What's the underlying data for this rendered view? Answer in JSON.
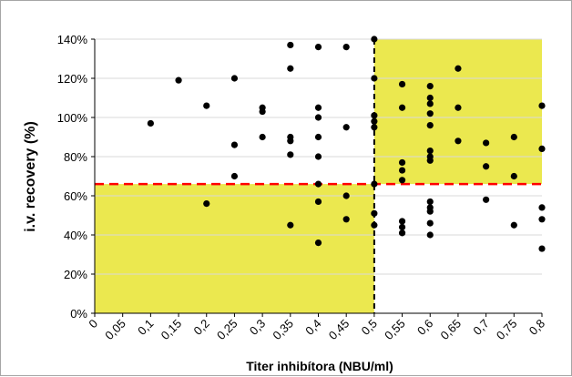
{
  "chart_data": {
    "type": "scatter",
    "xlabel": "Titer inhibítora (NBU/ml)",
    "ylabel": "i.v. recovery (%)",
    "xlim": [
      0,
      0.8
    ],
    "ylim": [
      0,
      140
    ],
    "x_ticks": [
      "0",
      "0,05",
      "0,1",
      "0,15",
      "0,2",
      "0,25",
      "0,3",
      "0,35",
      "0,4",
      "0,45",
      "0,5",
      "0,55",
      "0,6",
      "0,65",
      "0,7",
      "0,75",
      "0,8"
    ],
    "y_ticks": [
      "0%",
      "20%",
      "40%",
      "60%",
      "80%",
      "100%",
      "120%",
      "140%"
    ],
    "grid": "horizontal",
    "legend": "none",
    "colors": {
      "point": "#000000",
      "highlight": "#ebe84f",
      "threshold_line": "#ff0000",
      "cutoff_line": "#000000",
      "gridline": "#d9d9d9"
    },
    "shaded_regions": [
      {
        "x": [
          0,
          0.5
        ],
        "y": [
          0,
          66
        ]
      },
      {
        "x": [
          0.5,
          0.8
        ],
        "y": [
          66,
          140
        ]
      }
    ],
    "reference_lines": [
      {
        "orientation": "horizontal",
        "value": 66,
        "style": "dashed",
        "color": "#ff0000"
      },
      {
        "orientation": "vertical",
        "value": 0.5,
        "style": "dashed",
        "color": "#000000"
      }
    ],
    "series": [
      {
        "points": [
          [
            0.1,
            97
          ],
          [
            0.15,
            119
          ],
          [
            0.2,
            106
          ],
          [
            0.2,
            56
          ],
          [
            0.25,
            120
          ],
          [
            0.25,
            86
          ],
          [
            0.25,
            70
          ],
          [
            0.3,
            105
          ],
          [
            0.3,
            103
          ],
          [
            0.3,
            90
          ],
          [
            0.35,
            137
          ],
          [
            0.35,
            125
          ],
          [
            0.35,
            90
          ],
          [
            0.35,
            88
          ],
          [
            0.35,
            81
          ],
          [
            0.35,
            45
          ],
          [
            0.4,
            136
          ],
          [
            0.4,
            105
          ],
          [
            0.4,
            100
          ],
          [
            0.4,
            90
          ],
          [
            0.4,
            80
          ],
          [
            0.4,
            66
          ],
          [
            0.4,
            57
          ],
          [
            0.4,
            36
          ],
          [
            0.45,
            136
          ],
          [
            0.45,
            95
          ],
          [
            0.45,
            60
          ],
          [
            0.45,
            48
          ],
          [
            0.5,
            140
          ],
          [
            0.5,
            120
          ],
          [
            0.5,
            101
          ],
          [
            0.5,
            98
          ],
          [
            0.5,
            95
          ],
          [
            0.5,
            66
          ],
          [
            0.5,
            51
          ],
          [
            0.5,
            45
          ],
          [
            0.55,
            117
          ],
          [
            0.55,
            105
          ],
          [
            0.55,
            77
          ],
          [
            0.55,
            73
          ],
          [
            0.55,
            68
          ],
          [
            0.55,
            47
          ],
          [
            0.55,
            44
          ],
          [
            0.55,
            41
          ],
          [
            0.6,
            116
          ],
          [
            0.6,
            110
          ],
          [
            0.6,
            107
          ],
          [
            0.6,
            102
          ],
          [
            0.6,
            96
          ],
          [
            0.6,
            83
          ],
          [
            0.6,
            80
          ],
          [
            0.6,
            78
          ],
          [
            0.6,
            57
          ],
          [
            0.6,
            54
          ],
          [
            0.6,
            52
          ],
          [
            0.6,
            46
          ],
          [
            0.6,
            40
          ],
          [
            0.65,
            125
          ],
          [
            0.65,
            105
          ],
          [
            0.65,
            88
          ],
          [
            0.7,
            87
          ],
          [
            0.7,
            75
          ],
          [
            0.7,
            58
          ],
          [
            0.75,
            90
          ],
          [
            0.75,
            70
          ],
          [
            0.75,
            45
          ],
          [
            0.8,
            106
          ],
          [
            0.8,
            84
          ],
          [
            0.8,
            54
          ],
          [
            0.8,
            48
          ],
          [
            0.8,
            33
          ]
        ]
      }
    ]
  }
}
